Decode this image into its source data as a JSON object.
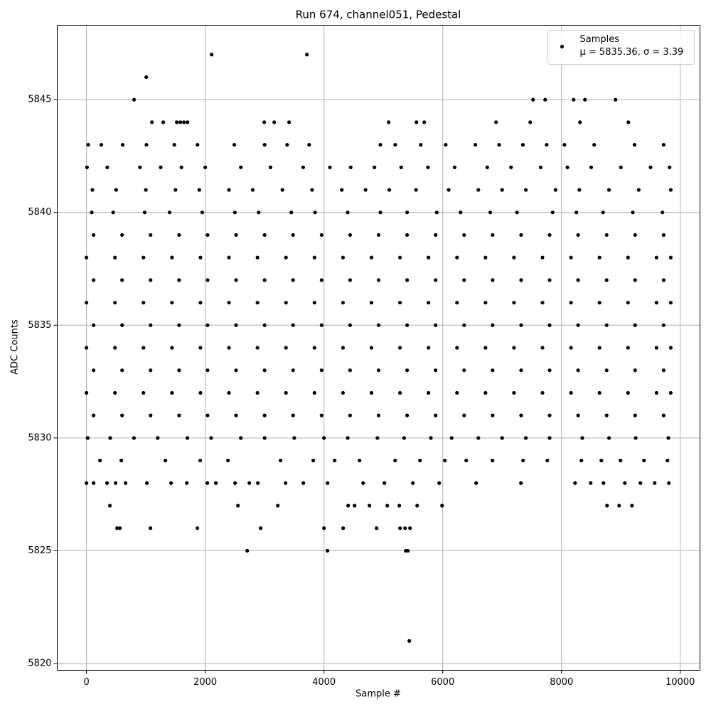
{
  "chart_data": {
    "type": "scatter",
    "title": "Run 674, channel051, Pedestal",
    "x_label": "Sample #",
    "y_label": "ADC Counts",
    "xlim": [
      -492,
      10332
    ],
    "ylim": [
      5819.7,
      5848.3
    ],
    "xticks": [
      0,
      2000,
      4000,
      6000,
      8000,
      10000
    ],
    "yticks": [
      5820,
      5825,
      5830,
      5835,
      5840,
      5845
    ],
    "grid": true,
    "legend_position": "upper right",
    "legend_note": "μ = 5835.36, σ = 3.39",
    "series": [
      {
        "name": "Samples",
        "color": "#000000",
        "x": [
          2108,
          3713,
          1006,
          802,
          7521,
          7725,
          8204,
          8395,
          8910,
          1102,
          1293,
          1521,
          1581,
          1641,
          1701,
          2994,
          3162,
          3413,
          5090,
          5557,
          5689,
          6898,
          7473,
          8311,
          9126,
          30,
          250,
          610,
          1010,
          1480,
          1870,
          2490,
          3000,
          3380,
          3750,
          4950,
          5200,
          5630,
          6050,
          6550,
          6950,
          7350,
          7750,
          8050,
          8550,
          9230,
          9720,
          10,
          350,
          900,
          1250,
          1600,
          2000,
          2600,
          3100,
          3650,
          4100,
          4450,
          4850,
          5300,
          5750,
          6200,
          6750,
          7150,
          7650,
          8100,
          8500,
          9000,
          9500,
          9820,
          100,
          500,
          1000,
          1500,
          1900,
          2400,
          2800,
          3300,
          3800,
          4300,
          4700,
          5100,
          5550,
          6100,
          6600,
          7000,
          7400,
          7900,
          8300,
          8800,
          9300,
          9840,
          90,
          450,
          980,
          1400,
          1950,
          2500,
          2900,
          3450,
          3850,
          4400,
          4950,
          5400,
          5900,
          6300,
          6800,
          7250,
          7850,
          8250,
          8700,
          9200,
          9700,
          120,
          600,
          1080,
          1560,
          2040,
          2520,
          3000,
          3480,
          3960,
          4440,
          4920,
          5400,
          5880,
          6360,
          6840,
          7320,
          7800,
          8280,
          8760,
          9240,
          9720,
          0,
          480,
          960,
          1440,
          1920,
          2400,
          2880,
          3360,
          3840,
          4320,
          4800,
          5280,
          5760,
          6240,
          6720,
          7200,
          7680,
          8160,
          8640,
          9120,
          9600,
          9840,
          120,
          600,
          1080,
          1560,
          2040,
          2520,
          3000,
          3480,
          3960,
          4440,
          4920,
          5400,
          5880,
          6360,
          6840,
          7320,
          7800,
          8280,
          8760,
          9240,
          9720,
          0,
          480,
          960,
          1440,
          1920,
          2400,
          2880,
          3360,
          3840,
          4320,
          4800,
          5280,
          5760,
          6240,
          6720,
          7200,
          7680,
          8160,
          8640,
          9120,
          9600,
          9840,
          120,
          600,
          1080,
          1560,
          2040,
          2520,
          3000,
          3480,
          3960,
          4440,
          4920,
          5400,
          5880,
          6360,
          6840,
          7320,
          7800,
          8280,
          8760,
          9240,
          9720,
          0,
          480,
          960,
          1440,
          1920,
          2400,
          2880,
          3360,
          3840,
          4320,
          4800,
          5280,
          5760,
          6240,
          6720,
          7200,
          7680,
          8160,
          8640,
          9120,
          9600,
          9840,
          120,
          600,
          1080,
          1560,
          2040,
          2520,
          3000,
          3480,
          3960,
          4440,
          4920,
          5400,
          5880,
          6360,
          6840,
          7320,
          7800,
          8280,
          8760,
          9240,
          9720,
          0,
          480,
          960,
          1440,
          1920,
          2400,
          2880,
          3360,
          3840,
          4320,
          4800,
          5280,
          5760,
          6240,
          6720,
          7200,
          7680,
          8160,
          8640,
          9120,
          9600,
          9840,
          120,
          600,
          1080,
          1560,
          2040,
          2520,
          3000,
          3480,
          3960,
          4440,
          4920,
          5400,
          5880,
          6360,
          6840,
          7320,
          7800,
          8280,
          8760,
          9240,
          9720,
          20,
          400,
          800,
          1200,
          1700,
          2100,
          2600,
          3000,
          3500,
          4000,
          4400,
          4900,
          5350,
          5800,
          6150,
          6600,
          7000,
          7400,
          7800,
          8350,
          8800,
          9250,
          9800,
          228,
          587,
          1329,
          1916,
          2383,
          3269,
          3820,
          4180,
          4599,
          5198,
          5617,
          6036,
          6395,
          6838,
          7353,
          7761,
          8335,
          8671,
          8994,
          9389,
          9784,
          0,
          120,
          347,
          491,
          659,
          1018,
          1425,
          1689,
          2036,
          2180,
          2503,
          2743,
          2886,
          3353,
          3653,
          4060,
          4659,
          5018,
          5497,
          5940,
          6563,
          7317,
          8228,
          8491,
          8707,
          9066,
          9329,
          9569,
          9808,
          395,
          2551,
          3222,
          4407,
          4515,
          4766,
          5066,
          5269,
          5569,
          5988,
          8766,
          8970,
          9186,
          515,
          563,
          1078,
          1868,
          2934,
          4000,
          4323,
          4886,
          5281,
          5365,
          5449,
          2707,
          4060,
          5377,
          5413,
          5437
        ],
        "values": [
          5847,
          5847,
          5846,
          5845,
          5845,
          5845,
          5845,
          5845,
          5845,
          5844,
          5844,
          5844,
          5844,
          5844,
          5844,
          5844,
          5844,
          5844,
          5844,
          5844,
          5844,
          5844,
          5844,
          5844,
          5844,
          5843,
          5843,
          5843,
          5843,
          5843,
          5843,
          5843,
          5843,
          5843,
          5843,
          5843,
          5843,
          5843,
          5843,
          5843,
          5843,
          5843,
          5843,
          5843,
          5843,
          5843,
          5843,
          5842,
          5842,
          5842,
          5842,
          5842,
          5842,
          5842,
          5842,
          5842,
          5842,
          5842,
          5842,
          5842,
          5842,
          5842,
          5842,
          5842,
          5842,
          5842,
          5842,
          5842,
          5842,
          5842,
          5841,
          5841,
          5841,
          5841,
          5841,
          5841,
          5841,
          5841,
          5841,
          5841,
          5841,
          5841,
          5841,
          5841,
          5841,
          5841,
          5841,
          5841,
          5841,
          5841,
          5841,
          5841,
          5840,
          5840,
          5840,
          5840,
          5840,
          5840,
          5840,
          5840,
          5840,
          5840,
          5840,
          5840,
          5840,
          5840,
          5840,
          5840,
          5840,
          5840,
          5840,
          5840,
          5840,
          5839,
          5839,
          5839,
          5839,
          5839,
          5839,
          5839,
          5839,
          5839,
          5839,
          5839,
          5839,
          5839,
          5839,
          5839,
          5839,
          5839,
          5839,
          5839,
          5839,
          5839,
          5838,
          5838,
          5838,
          5838,
          5838,
          5838,
          5838,
          5838,
          5838,
          5838,
          5838,
          5838,
          5838,
          5838,
          5838,
          5838,
          5838,
          5838,
          5838,
          5838,
          5838,
          5838,
          5837,
          5837,
          5837,
          5837,
          5837,
          5837,
          5837,
          5837,
          5837,
          5837,
          5837,
          5837,
          5837,
          5837,
          5837,
          5837,
          5837,
          5837,
          5837,
          5837,
          5837,
          5836,
          5836,
          5836,
          5836,
          5836,
          5836,
          5836,
          5836,
          5836,
          5836,
          5836,
          5836,
          5836,
          5836,
          5836,
          5836,
          5836,
          5836,
          5836,
          5836,
          5836,
          5836,
          5835,
          5835,
          5835,
          5835,
          5835,
          5835,
          5835,
          5835,
          5835,
          5835,
          5835,
          5835,
          5835,
          5835,
          5835,
          5835,
          5835,
          5835,
          5835,
          5835,
          5835,
          5834,
          5834,
          5834,
          5834,
          5834,
          5834,
          5834,
          5834,
          5834,
          5834,
          5834,
          5834,
          5834,
          5834,
          5834,
          5834,
          5834,
          5834,
          5834,
          5834,
          5834,
          5834,
          5833,
          5833,
          5833,
          5833,
          5833,
          5833,
          5833,
          5833,
          5833,
          5833,
          5833,
          5833,
          5833,
          5833,
          5833,
          5833,
          5833,
          5833,
          5833,
          5833,
          5833,
          5832,
          5832,
          5832,
          5832,
          5832,
          5832,
          5832,
          5832,
          5832,
          5832,
          5832,
          5832,
          5832,
          5832,
          5832,
          5832,
          5832,
          5832,
          5832,
          5832,
          5832,
          5832,
          5831,
          5831,
          5831,
          5831,
          5831,
          5831,
          5831,
          5831,
          5831,
          5831,
          5831,
          5831,
          5831,
          5831,
          5831,
          5831,
          5831,
          5831,
          5831,
          5831,
          5831,
          5830,
          5830,
          5830,
          5830,
          5830,
          5830,
          5830,
          5830,
          5830,
          5830,
          5830,
          5830,
          5830,
          5830,
          5830,
          5830,
          5830,
          5830,
          5830,
          5830,
          5830,
          5830,
          5830,
          5829,
          5829,
          5829,
          5829,
          5829,
          5829,
          5829,
          5829,
          5829,
          5829,
          5829,
          5829,
          5829,
          5829,
          5829,
          5829,
          5829,
          5829,
          5829,
          5829,
          5829,
          5828,
          5828,
          5828,
          5828,
          5828,
          5828,
          5828,
          5828,
          5828,
          5828,
          5828,
          5828,
          5828,
          5828,
          5828,
          5828,
          5828,
          5828,
          5828,
          5828,
          5828,
          5828,
          5828,
          5828,
          5828,
          5828,
          5828,
          5828,
          5828,
          5827,
          5827,
          5827,
          5827,
          5827,
          5827,
          5827,
          5827,
          5827,
          5827,
          5827,
          5827,
          5827,
          5826,
          5826,
          5826,
          5826,
          5826,
          5826,
          5826,
          5826,
          5826,
          5826,
          5826,
          5825,
          5825,
          5825,
          5825,
          5821
        ]
      }
    ]
  }
}
